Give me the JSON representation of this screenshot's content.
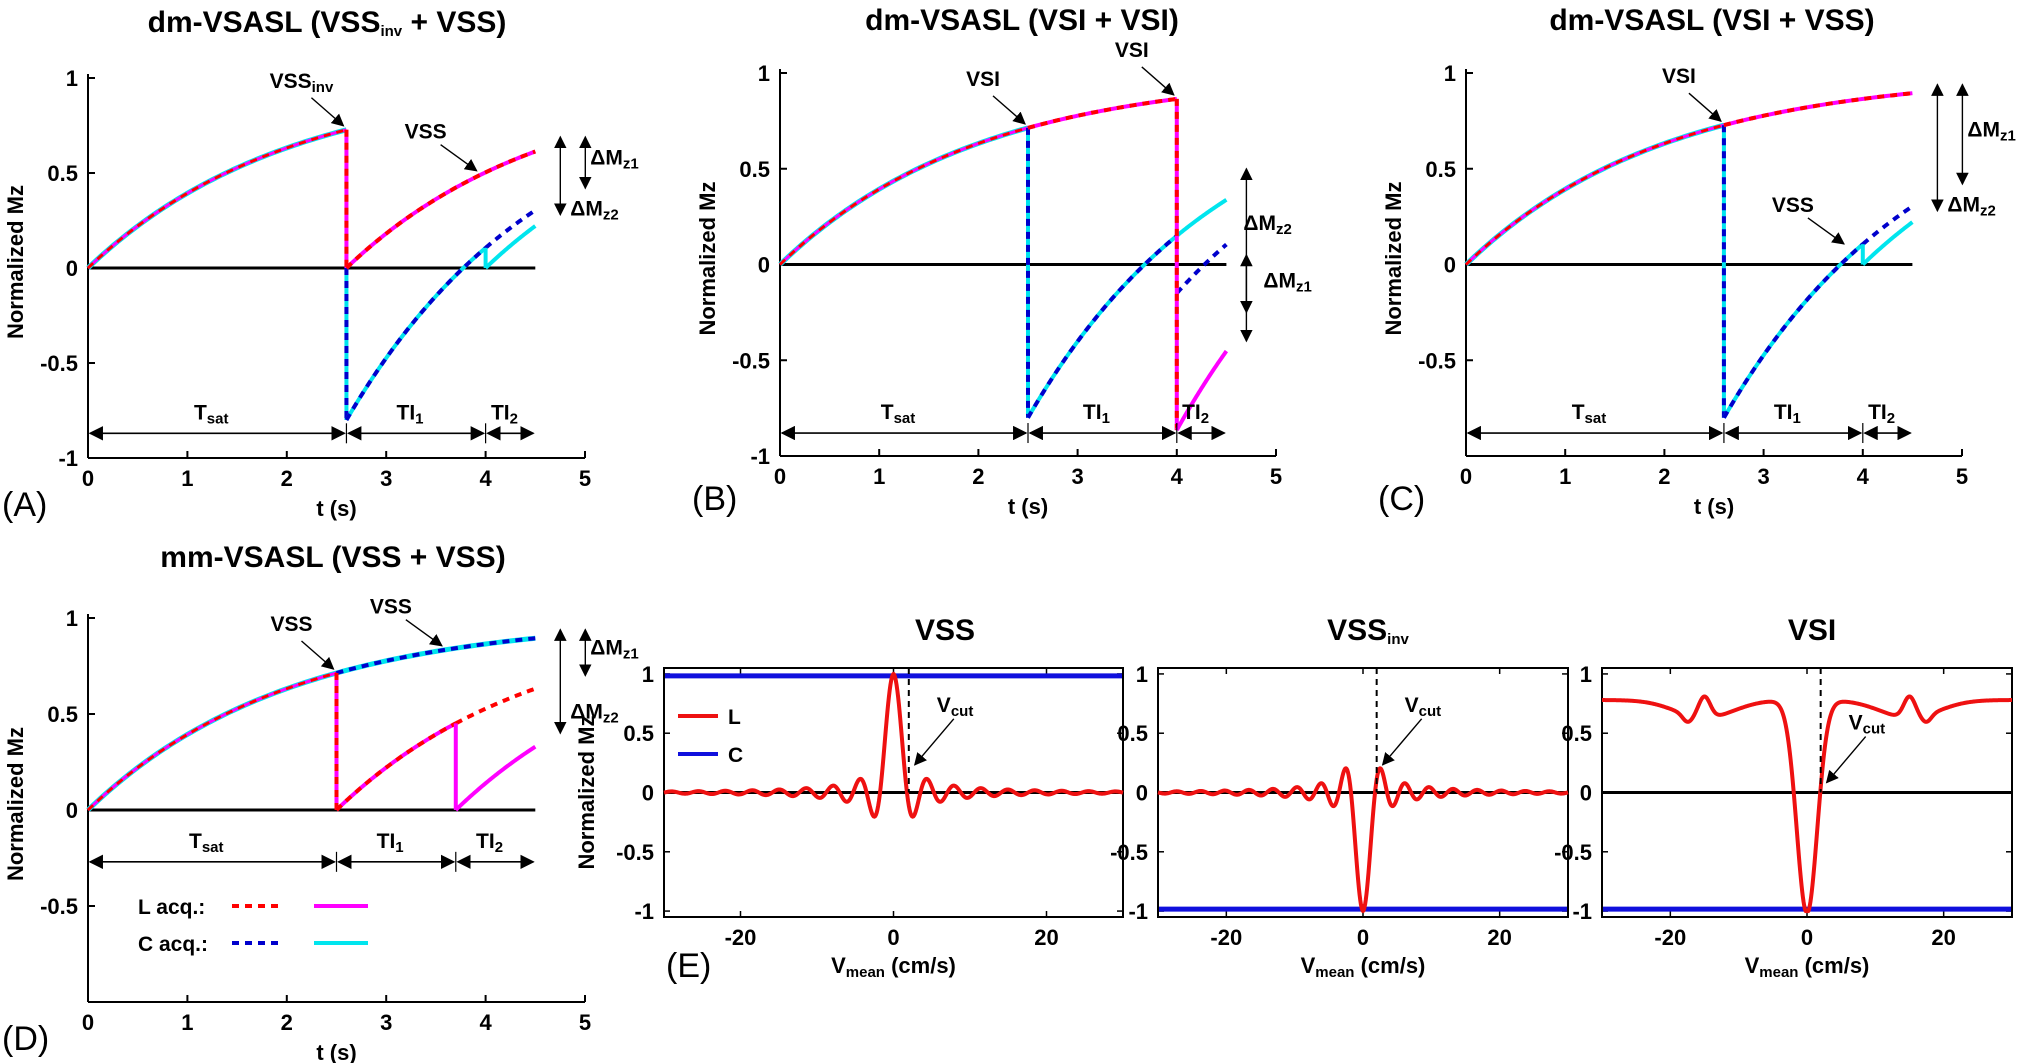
{
  "figure": {
    "panel_labels": [
      "(A)",
      "(B)",
      "(C)",
      "(D)",
      "(E)"
    ]
  },
  "colors": {
    "L_dashed": "#ff0000",
    "L_solid": "#ff00ff",
    "C_dashed": "#0000cc",
    "C_solid": "#00e5ee",
    "zero_line": "#000000",
    "E_L": "#ee1111",
    "E_C": "#1010dd"
  },
  "legend_D": [
    {
      "label": "L acq.:",
      "dashed_color": "#ff0000",
      "solid_color": "#ff00ff"
    },
    {
      "label": "C acq.:",
      "dashed_color": "#0000cc",
      "solid_color": "#00e5ee"
    }
  ],
  "chart_data": [
    {
      "id": "A",
      "type": "line",
      "title": "dm-VSASL (VSS",
      "title_sub": "inv",
      "title_end": " + VSS)",
      "xlabel": "t (s)",
      "ylabel": "Normalized Mz",
      "xlim": [
        0,
        5
      ],
      "ylim": [
        -1,
        1
      ],
      "xticks": [
        0,
        1,
        2,
        3,
        4,
        5
      ],
      "yticks": [
        -1,
        -0.5,
        0,
        0.5,
        1
      ],
      "tick_labels_y": [
        "-1",
        "-0.5",
        "0",
        "0.5",
        "1"
      ],
      "T1": 2.0,
      "t_end": 4.5,
      "events": [
        {
          "t": 2.6,
          "label": "VSS",
          "sub": "inv",
          "L_after": 0,
          "C_after": -0.8
        },
        {
          "t": 4.0,
          "label": "",
          "sub": "",
          "C_solid_after": 0
        }
      ],
      "intervals": [
        {
          "label": "T",
          "sub": "sat",
          "t0": 0,
          "t1": 2.6
        },
        {
          "label": "TI",
          "sub": "1",
          "t0": 2.6,
          "t1": 4.0
        },
        {
          "label": "TI",
          "sub": "2",
          "t0": 4.0,
          "t1": 4.5
        }
      ],
      "callouts": [
        {
          "label": "VSS",
          "sub": "",
          "t": 3.95
        }
      ],
      "deltas": [
        {
          "label": "ΔM",
          "sub": "z1"
        },
        {
          "label": "ΔM",
          "sub": "z2"
        }
      ]
    },
    {
      "id": "B",
      "type": "line",
      "title": "dm-VSASL (VSI + VSI)",
      "xlabel": "t (s)",
      "ylabel": "Normalized Mz",
      "xlim": [
        0,
        5
      ],
      "ylim": [
        -1,
        1
      ],
      "xticks": [
        0,
        1,
        2,
        3,
        4,
        5
      ],
      "yticks": [
        -1,
        -0.5,
        0,
        0.5,
        1
      ],
      "tick_labels_y": [
        "-1",
        "-0.5",
        "0",
        "0.5",
        "1"
      ],
      "T1": 2.0,
      "t_end": 4.5,
      "events": [
        {
          "t": 2.5,
          "label": "VSI"
        },
        {
          "t": 4.0,
          "label": "VSI"
        }
      ],
      "intervals": [
        {
          "label": "T",
          "sub": "sat",
          "t0": 0,
          "t1": 2.5
        },
        {
          "label": "TI",
          "sub": "1",
          "t0": 2.5,
          "t1": 4.0
        },
        {
          "label": "TI",
          "sub": "2",
          "t0": 4.0,
          "t1": 4.5
        }
      ],
      "deltas": [
        {
          "label": "ΔM",
          "sub": "z2"
        },
        {
          "label": "ΔM",
          "sub": "z1"
        }
      ]
    },
    {
      "id": "C",
      "type": "line",
      "title": "dm-VSASL (VSI + VSS)",
      "xlabel": "t (s)",
      "ylabel": "Normalized Mz",
      "xlim": [
        0,
        5
      ],
      "ylim": [
        -1,
        1
      ],
      "xticks": [
        0,
        1,
        2,
        3,
        4,
        5
      ],
      "yticks": [
        -0.5,
        0,
        0.5,
        1
      ],
      "tick_labels_y": [
        "-0.5",
        "0",
        "0.5",
        "1"
      ],
      "T1": 2.0,
      "t_end": 4.5,
      "events": [
        {
          "t": 2.6,
          "label": "VSI"
        },
        {
          "t": 4.0,
          "label": ""
        }
      ],
      "intervals": [
        {
          "label": "T",
          "sub": "sat",
          "t0": 0,
          "t1": 2.6
        },
        {
          "label": "TI",
          "sub": "1",
          "t0": 2.6,
          "t1": 4.0
        },
        {
          "label": "TI",
          "sub": "2",
          "t0": 4.0,
          "t1": 4.5
        }
      ],
      "callouts": [
        {
          "label": "VSS",
          "sub": "",
          "t": 3.85
        }
      ],
      "deltas": [
        {
          "label": "ΔM",
          "sub": "z1"
        },
        {
          "label": "ΔM",
          "sub": "z2"
        }
      ]
    },
    {
      "id": "D",
      "type": "line",
      "title": "mm-VSASL (VSS + VSS)",
      "xlabel": "t (s)",
      "ylabel": "Normalized Mz",
      "xlim": [
        0,
        5
      ],
      "ylim": [
        -1,
        1
      ],
      "xticks": [
        0,
        1,
        2,
        3,
        4,
        5
      ],
      "yticks": [
        -0.5,
        0,
        0.5,
        1
      ],
      "tick_labels_y": [
        "-0.5",
        "0",
        "0.5",
        "1"
      ],
      "T1": 2.0,
      "t_end": 4.5,
      "events": [
        {
          "t": 2.5,
          "label": "VSS"
        },
        {
          "t": 3.7,
          "label": ""
        }
      ],
      "intervals": [
        {
          "label": "T",
          "sub": "sat",
          "t0": 0,
          "t1": 2.5
        },
        {
          "label": "TI",
          "sub": "1",
          "t0": 2.5,
          "t1": 3.7
        },
        {
          "label": "TI",
          "sub": "2",
          "t0": 3.7,
          "t1": 4.5
        }
      ],
      "callouts": [
        {
          "label": "VSS",
          "sub": "",
          "t": 3.6
        }
      ],
      "deltas": [
        {
          "label": "ΔM",
          "sub": "z1"
        },
        {
          "label": "ΔM",
          "sub": "z2"
        }
      ]
    },
    {
      "id": "E1",
      "type": "line",
      "title": "VSS",
      "title_sub": "",
      "xlabel_main": "V",
      "xlabel_sub": "mean",
      "xlabel_end": " (cm/s)",
      "ylabel": "Normalized Mz",
      "xlim": [
        -30,
        30
      ],
      "ylim": [
        -1.05,
        1.05
      ],
      "xticks": [
        -20,
        0,
        20
      ],
      "tick_labels_x": [
        "-20",
        "0",
        "20"
      ],
      "yticks": [
        -1,
        -0.5,
        0,
        0.5,
        1
      ],
      "tick_labels_y": [
        "-1",
        "-0.5",
        "0",
        "0.5",
        "1"
      ],
      "profile": "sinc",
      "L_peak": 1.0,
      "C_level": 1.0,
      "vcut": 2,
      "vcut_label": "V",
      "vcut_sub": "cut",
      "legend": [
        {
          "name": "L",
          "color": "#ee1111"
        },
        {
          "name": "C",
          "color": "#1010dd"
        }
      ]
    },
    {
      "id": "E2",
      "type": "line",
      "title": "VSS",
      "title_sub": "inv",
      "xlabel_main": "V",
      "xlabel_sub": "mean",
      "xlabel_end": " (cm/s)",
      "ylabel": "",
      "xlim": [
        -30,
        30
      ],
      "ylim": [
        -1.05,
        1.05
      ],
      "xticks": [
        -20,
        0,
        20
      ],
      "tick_labels_x": [
        "-20",
        "0",
        "20"
      ],
      "yticks": [
        -1,
        -0.5,
        0,
        0.5,
        1
      ],
      "tick_labels_y": [
        "-1",
        "-0.5",
        "0",
        "0.5",
        "1"
      ],
      "profile": "sinc",
      "L_peak": -1.0,
      "C_level": -1.0,
      "vcut": 2,
      "vcut_label": "V",
      "vcut_sub": "cut"
    },
    {
      "id": "E3",
      "type": "line",
      "title": "VSI",
      "title_sub": "",
      "xlabel_main": "V",
      "xlabel_sub": "mean",
      "xlabel_end": " (cm/s)",
      "ylabel": "",
      "xlim": [
        -30,
        30
      ],
      "ylim": [
        -1.05,
        1.05
      ],
      "xticks": [
        -20,
        0,
        20
      ],
      "tick_labels_x": [
        "-20",
        "0",
        "20"
      ],
      "yticks": [
        -1,
        -0.5,
        0,
        0.5,
        1
      ],
      "tick_labels_y": [
        "-1",
        "-0.5",
        "0",
        "0.5",
        "1"
      ],
      "profile": "vsi",
      "C_level": -1.0,
      "vcut": 2,
      "vcut_label": "V",
      "vcut_sub": "cut"
    }
  ]
}
